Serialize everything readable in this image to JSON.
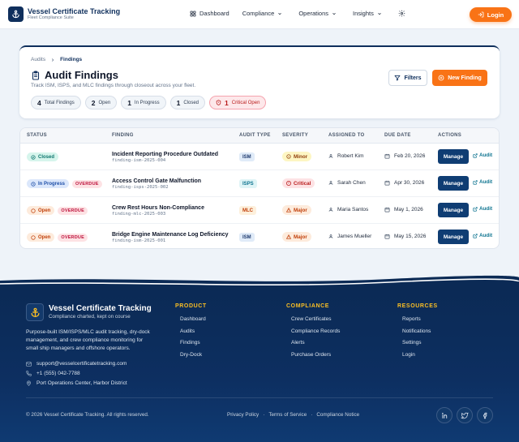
{
  "header": {
    "brand_title": "Vessel Certificate Tracking",
    "brand_subtitle": "Fleet Compliance Suite",
    "nav": [
      {
        "label": "Dashboard"
      },
      {
        "label": "Compliance"
      },
      {
        "label": "Operations"
      },
      {
        "label": "Insights"
      }
    ],
    "login_label": "Login"
  },
  "page": {
    "breadcrumb": [
      "Audits",
      "Findings"
    ],
    "title": "Audit Findings",
    "subtitle": "Track ISM, ISPS, and MLC findings through closeout across your fleet.",
    "stats": [
      {
        "count": "4",
        "label": "Total Findings"
      },
      {
        "count": "2",
        "label": "Open"
      },
      {
        "count": "1",
        "label": "In Progress"
      },
      {
        "count": "1",
        "label": "Closed"
      },
      {
        "count": "1",
        "label": "Critical Open"
      }
    ],
    "filters_label": "Filters",
    "new_finding_label": "New Finding"
  },
  "table": {
    "columns": [
      "STATUS",
      "FINDING",
      "AUDIT TYPE",
      "SEVERITY",
      "ASSIGNED TO",
      "DUE DATE",
      "ACTIONS"
    ],
    "rows": [
      {
        "status": "Closed",
        "overdue": "",
        "title": "Incident Reporting Procedure Outdated",
        "id": "finding-ism-2025-004",
        "audit_type": "ISM",
        "severity": "Minor",
        "assignee": "Robert Kim",
        "due": "Feb 20, 2026",
        "manage": "Manage",
        "audit": "Audit"
      },
      {
        "status": "In Progress",
        "overdue": "OVERDUE",
        "title": "Access Control Gate Malfunction",
        "id": "finding-isps-2025-002",
        "audit_type": "ISPS",
        "severity": "Critical",
        "assignee": "Sarah Chen",
        "due": "Apr 30, 2026",
        "manage": "Manage",
        "audit": "Audit"
      },
      {
        "status": "Open",
        "overdue": "OVERDUE",
        "title": "Crew Rest Hours Non-Compliance",
        "id": "finding-mlc-2025-003",
        "audit_type": "MLC",
        "severity": "Major",
        "assignee": "Maria Santos",
        "due": "May 1, 2026",
        "manage": "Manage",
        "audit": "Audit"
      },
      {
        "status": "Open",
        "overdue": "OVERDUE",
        "title": "Bridge Engine Maintenance Log Deficiency",
        "id": "finding-ism-2025-001",
        "audit_type": "ISM",
        "severity": "Major",
        "assignee": "James Mueller",
        "due": "May 15, 2026",
        "manage": "Manage",
        "audit": "Audit"
      }
    ]
  },
  "footer": {
    "brand_title": "Vessel Certificate Tracking",
    "tagline": "Compliance charted, kept on course",
    "description": "Purpose-built ISM/ISPS/MLC audit tracking, dry-dock management, and crew compliance monitoring for small ship managers and offshore operators.",
    "email": "support@vesselcertificatetracking.com",
    "phone": "+1 (555) 042-7788",
    "address": "Port Operations Center, Harbor District",
    "columns": [
      {
        "title": "PRODUCT",
        "links": [
          "Dashboard",
          "Audits",
          "Findings",
          "Dry-Dock"
        ]
      },
      {
        "title": "COMPLIANCE",
        "links": [
          "Crew Certificates",
          "Compliance Records",
          "Alerts",
          "Purchase Orders"
        ]
      },
      {
        "title": "RESOURCES",
        "links": [
          "Reports",
          "Notifications",
          "Settings",
          "Login"
        ]
      }
    ],
    "copyright": "© 2026 Vessel Certificate Tracking. All rights reserved.",
    "legal": [
      "Privacy Policy",
      "Terms of Service",
      "Compliance Notice"
    ],
    "legal_sep": "·"
  },
  "colors": {
    "navy": "#0f2f5c",
    "accent": "#f97316",
    "teal": "#0e7490"
  }
}
